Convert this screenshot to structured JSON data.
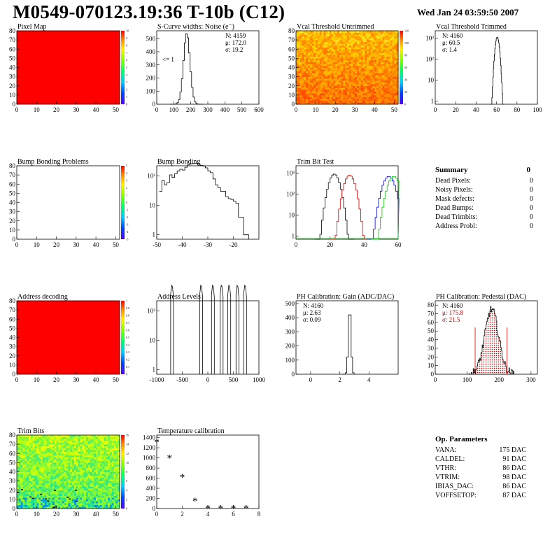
{
  "header": {
    "title": "M0549-070123.19:36 T-10b (C12)",
    "date": "Wed Jan 24 03:59:50 2007"
  },
  "summary": {
    "title": "Summary",
    "value": "0",
    "rows": [
      {
        "label": "Dead Pixels:",
        "value": "0"
      },
      {
        "label": "Noisy Pixels:",
        "value": "0"
      },
      {
        "label": "Mask defects:",
        "value": "0"
      },
      {
        "label": "Dead Bumps:",
        "value": "0"
      },
      {
        "label": "Dead Trimbits:",
        "value": "0"
      },
      {
        "label": "Address Probl:",
        "value": "0"
      }
    ]
  },
  "op_params": {
    "title": "Op. Parameters",
    "rows": [
      {
        "label": "VANA:",
        "value": "175 DAC"
      },
      {
        "label": "CALDEL:",
        "value": "91 DAC"
      },
      {
        "label": "VTHR:",
        "value": "86 DAC"
      },
      {
        "label": "VTRIM:",
        "value": "98 DAC"
      },
      {
        "label": "IBIAS_DAC:",
        "value": "86 DAC"
      },
      {
        "label": "VOFFSETOP:",
        "value": "87 DAC"
      }
    ]
  },
  "colors": {
    "red_map": "#ff0000",
    "hist_line": "#000000",
    "trim_red": "#cc0000",
    "trim_blue": "#0000cc",
    "trim_green": "#00cc00",
    "pedestal_fill": "#cc0000"
  },
  "chart_data": [
    {
      "id": "pixel_map",
      "type": "heatmap",
      "title": "Pixel Map",
      "xlim": [
        0,
        52
      ],
      "ylim": [
        0,
        80
      ],
      "xticks": [
        "0",
        "10",
        "20",
        "30",
        "40",
        "50"
      ],
      "yticks": [
        "0",
        "10",
        "20",
        "30",
        "40",
        "50",
        "60",
        "70",
        "80"
      ],
      "fill": "uniform",
      "palette_ticks": [
        "0",
        "1",
        "2",
        "3",
        "4",
        "5",
        "6",
        "7",
        "8",
        "9",
        "10"
      ]
    },
    {
      "id": "scurve_widths",
      "type": "bar",
      "title": "S-Curve widths: Noise (e⁻)",
      "xlim": [
        0,
        600
      ],
      "ylim": [
        0,
        560
      ],
      "xticks": [
        "0",
        "100",
        "200",
        "300",
        "400",
        "500",
        "600"
      ],
      "yticks": [
        "0",
        "100",
        "200",
        "300",
        "400",
        "500"
      ],
      "stats": [
        "N: 4159",
        "μ: 172.0",
        "σ: 19.2"
      ],
      "annotation": "<= 1",
      "peak": {
        "mean": 172,
        "sigma": 19.2,
        "height": 540
      }
    },
    {
      "id": "vcal_untrimmed",
      "type": "heatmap",
      "title": "Vcal Threshold Untrimmed",
      "xlim": [
        0,
        52
      ],
      "ylim": [
        0,
        80
      ],
      "xticks": [
        "0",
        "10",
        "20",
        "30",
        "40",
        "50"
      ],
      "yticks": [
        "0",
        "10",
        "20",
        "30",
        "40",
        "50",
        "60",
        "70",
        "80"
      ],
      "fill": "noisy-warm",
      "palette_ticks": [
        "0",
        "20",
        "40",
        "60",
        "80",
        "100",
        "120"
      ]
    },
    {
      "id": "vcal_trimmed",
      "type": "bar",
      "title": "Vcal Threshold Trimmed",
      "log": true,
      "xlim": [
        0,
        100
      ],
      "xticks": [
        "0",
        "20",
        "40",
        "60",
        "80",
        "100"
      ],
      "yticks": [
        "1",
        "10",
        "10²",
        "10³"
      ],
      "stats": [
        "N: 4160",
        "μ: 60.5",
        "σ: 1.4"
      ],
      "peak": {
        "mean": 60.5,
        "sigma": 1.4,
        "height": 1100
      }
    },
    {
      "id": "bump_problems",
      "type": "heatmap",
      "title": "Bump Bonding Problems",
      "xlim": [
        0,
        52
      ],
      "ylim": [
        0,
        80
      ],
      "xticks": [
        "0",
        "10",
        "20",
        "30",
        "40",
        "50"
      ],
      "yticks": [
        "0",
        "10",
        "20",
        "30",
        "40",
        "50",
        "60",
        "70",
        "80"
      ],
      "fill": "empty",
      "palette_ticks": [
        "-5",
        "-4",
        "-3",
        "-2",
        "-1",
        "0",
        "1",
        "2",
        "3",
        "4",
        "5"
      ]
    },
    {
      "id": "bump_bonding",
      "type": "bar",
      "title": "Bump Bonding",
      "log": true,
      "xlim": [
        -50,
        -10
      ],
      "xticks": [
        "-50",
        "-40",
        "-30",
        "-20"
      ],
      "yticks": [
        "1",
        "10",
        "10²"
      ],
      "x": [
        -49,
        -48,
        -47,
        -46,
        -45,
        -44,
        -43,
        -42,
        -41,
        -40,
        -39,
        -38,
        -37,
        -36,
        -35,
        -34,
        -33,
        -32,
        -31,
        -30,
        -29,
        -28,
        -27,
        -26,
        -25,
        -24,
        -23,
        -22,
        -21,
        -20,
        -19,
        -18,
        -17,
        -16,
        -15
      ],
      "values": [
        30,
        70,
        50,
        60,
        110,
        90,
        120,
        150,
        170,
        160,
        200,
        240,
        260,
        270,
        270,
        250,
        230,
        220,
        190,
        150,
        130,
        80,
        50,
        40,
        30,
        30,
        20,
        17,
        16,
        14,
        12,
        4,
        4,
        1,
        1
      ]
    },
    {
      "id": "trim_bit_test",
      "type": "line",
      "title": "Trim Bit Test",
      "log": true,
      "xlim": [
        0,
        60
      ],
      "xticks": [
        "0",
        "20",
        "40",
        "60"
      ],
      "yticks": [
        "1",
        "10",
        "10²",
        "10³"
      ],
      "series": [
        {
          "color": "#000000",
          "mean": 22,
          "sigma": 2.2,
          "height": 900
        },
        {
          "color": "#cc0000",
          "mean": 31,
          "sigma": 2.2,
          "height": 800
        },
        {
          "color": "#0000cc",
          "mean": 54,
          "sigma": 2.5,
          "height": 700
        },
        {
          "color": "#00cc00",
          "mean": 57,
          "sigma": 2.5,
          "height": 700
        }
      ]
    },
    {
      "id": "address_decoding",
      "type": "heatmap",
      "title": "Address decoding",
      "xlim": [
        0,
        52
      ],
      "ylim": [
        0,
        80
      ],
      "xticks": [
        "0",
        "10",
        "20",
        "30",
        "40",
        "50"
      ],
      "yticks": [
        "0",
        "10",
        "20",
        "30",
        "40",
        "50",
        "60",
        "70",
        "80"
      ],
      "fill": "uniform",
      "palette_ticks": [
        "0",
        "0.1",
        "0.2",
        "0.3",
        "0.4",
        "0.5",
        "0.6",
        "0.7",
        "0.8",
        "0.9",
        "1"
      ]
    },
    {
      "id": "address_levels",
      "type": "bar",
      "title": "Address Levels",
      "log": true,
      "xlim": [
        -1000,
        1000
      ],
      "xticks": [
        "-1000",
        "-500",
        "0",
        "500",
        "1000"
      ],
      "yticks": [
        "1",
        "10",
        "10²"
      ],
      "peaks": [
        -700,
        -130,
        100,
        270,
        420,
        580,
        730
      ],
      "peak_height": 750
    },
    {
      "id": "ph_gain",
      "type": "bar",
      "title": "PH Calibration: Gain (ADC/DAC)",
      "xlim": [
        -1,
        6
      ],
      "ylim": [
        0,
        520
      ],
      "xticks": [
        "0",
        "2",
        "4"
      ],
      "yticks": [
        "0",
        "100",
        "200",
        "300",
        "400",
        "500"
      ],
      "stats": [
        "N: 4160",
        "μ: 2.63",
        "σ: 0.09"
      ],
      "peak": {
        "mean": 2.63,
        "sigma": 0.09,
        "height": 490
      }
    },
    {
      "id": "ph_pedestal",
      "type": "bar",
      "title": "PH Calibration: Pedestal (DAC)",
      "xlim": [
        0,
        320
      ],
      "ylim": [
        0,
        85
      ],
      "xticks": [
        "0",
        "100",
        "200",
        "300"
      ],
      "yticks": [
        "0",
        "10",
        "20",
        "30",
        "40",
        "50",
        "60",
        "70",
        "80"
      ],
      "stats": [
        "N: 4160",
        "μ: 175.8",
        "σ: 21.5"
      ],
      "peak": {
        "mean": 175.8,
        "sigma": 21.5,
        "height": 75
      },
      "cut_lines": [
        125,
        225
      ]
    },
    {
      "id": "trim_bits",
      "type": "heatmap",
      "title": "Trim Bits",
      "xlim": [
        0,
        52
      ],
      "ylim": [
        0,
        80
      ],
      "xticks": [
        "0",
        "10",
        "20",
        "30",
        "40",
        "50"
      ],
      "yticks": [
        "0",
        "10",
        "20",
        "30",
        "40",
        "50",
        "60",
        "70",
        "80"
      ],
      "fill": "noisy-cool",
      "palette_ticks": [
        "0",
        "2",
        "4",
        "6",
        "8",
        "10",
        "12",
        "14",
        "16"
      ]
    },
    {
      "id": "temperature_calibration",
      "type": "scatter",
      "title": "Temperature calibration",
      "xlim": [
        0,
        8
      ],
      "ylim": [
        0,
        1450
      ],
      "xticks": [
        "0",
        "2",
        "4",
        "6",
        "8"
      ],
      "yticks": [
        "0",
        "200",
        "400",
        "600",
        "800",
        "1000",
        "1200",
        "1400"
      ],
      "x": [
        0,
        1,
        2,
        3,
        4,
        5,
        6,
        7
      ],
      "y": [
        1310,
        1000,
        620,
        150,
        10,
        5,
        5,
        5
      ]
    }
  ]
}
